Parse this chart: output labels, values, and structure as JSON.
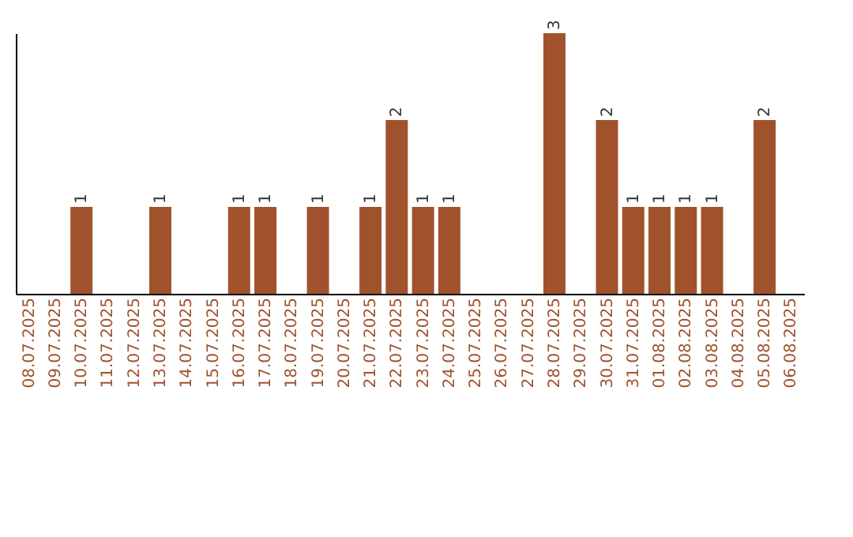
{
  "chart_data": {
    "type": "bar",
    "categories": [
      "08.07.2025",
      "09.07.2025",
      "10.07.2025",
      "11.07.2025",
      "12.07.2025",
      "13.07.2025",
      "14.07.2025",
      "15.07.2025",
      "16.07.2025",
      "17.07.2025",
      "18.07.2025",
      "19.07.2025",
      "20.07.2025",
      "21.07.2025",
      "22.07.2025",
      "23.07.2025",
      "24.07.2025",
      "25.07.2025",
      "26.07.2025",
      "27.07.2025",
      "28.07.2025",
      "29.07.2025",
      "30.07.2025",
      "31.07.2025",
      "01.08.2025",
      "02.08.2025",
      "03.08.2025",
      "04.08.2025",
      "05.08.2025",
      "06.08.2025"
    ],
    "values": [
      0,
      0,
      1,
      0,
      0,
      1,
      0,
      0,
      1,
      1,
      0,
      1,
      0,
      1,
      2,
      1,
      1,
      0,
      0,
      0,
      3,
      0,
      2,
      1,
      1,
      1,
      1,
      0,
      2,
      0
    ],
    "value_labels": [
      null,
      null,
      "1",
      null,
      null,
      "1",
      null,
      null,
      "1",
      "1",
      null,
      "1",
      null,
      "1",
      "2",
      "1",
      "1",
      null,
      null,
      null,
      "3",
      null,
      "2",
      "1",
      "1",
      "1",
      "1",
      null,
      "2",
      null
    ],
    "color": "#a0522d",
    "tick_labels": "x",
    "grid": false
  }
}
